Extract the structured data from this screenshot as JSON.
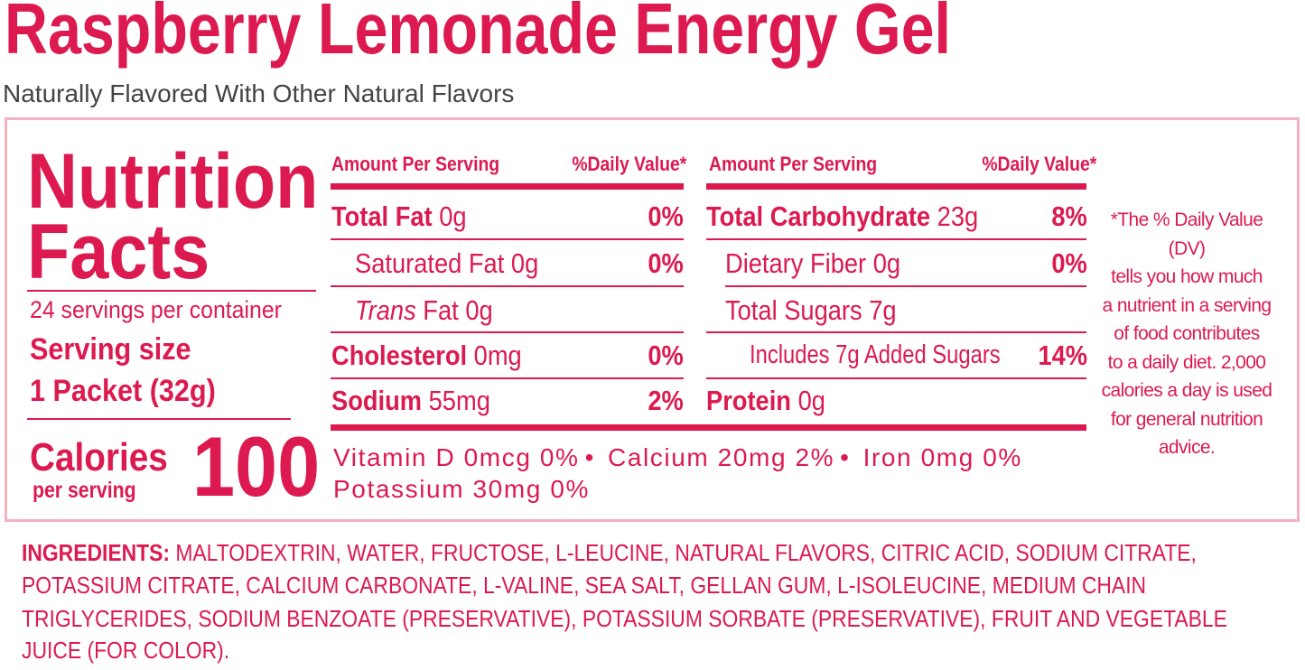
{
  "header": {
    "title": "Raspberry Lemonade Energy Gel",
    "subtitle": "Naturally Flavored With Other Natural Flavors"
  },
  "facts": {
    "heading_lines": [
      "Nutrition",
      "Facts"
    ],
    "servings": "24 servings per container",
    "serving_size_label": "Serving size",
    "serving_size": "1 Packet (32g)",
    "calories_label": "Calories",
    "calories_sub": "per serving",
    "calories": 100
  },
  "left_table": {
    "header_amount": "Amount Per Serving",
    "header_dv": "%Daily Value*",
    "rows": [
      {
        "name": "Total Fat",
        "amount": "0g",
        "dv": "0%"
      },
      {
        "name": "Saturated Fat",
        "amount": "0g",
        "dv": "0%"
      },
      {
        "name_italic": "Trans",
        "name": "Fat",
        "amount": "0g"
      },
      {
        "name": "Cholesterol",
        "amount": "0mg",
        "dv": "0%"
      },
      {
        "name": "Sodium",
        "amount": "55mg",
        "dv": "2%"
      }
    ]
  },
  "right_table": {
    "header_amount": "Amount Per Serving",
    "header_dv": "%Daily Value*",
    "rows": [
      {
        "name": "Total Carbohydrate",
        "amount": "23g",
        "dv": "8%"
      },
      {
        "name": "Dietary Fiber",
        "amount": "0g",
        "dv": "0%"
      },
      {
        "name": "Total Sugars",
        "amount": "7g"
      },
      {
        "name": "Includes 7g Added Sugars",
        "dv": "14%"
      },
      {
        "name": "Protein",
        "amount": "0g"
      }
    ]
  },
  "vitamins": [
    "Vitamin D 0mcg 0%",
    "Calcium 20mg 2%",
    "Iron 0mg 0%",
    "Potassium 30mg 0%"
  ],
  "footnote_lines": [
    "*The % Daily Value (DV)",
    "tells you how much",
    "a nutrient in a serving",
    "of food contributes",
    "to a daily diet. 2,000",
    "calories a day is used",
    "for general nutrition",
    "advice."
  ],
  "ingredients": {
    "label": "INGREDIENTS:",
    "lines": [
      "MALTODEXTRIN, WATER, FRUCTOSE, L-LEUCINE, NATURAL FLAVORS, CITRIC ACID, SODIUM CITRATE,",
      "POTASSIUM CITRATE, CALCIUM CARBONATE, L-VALINE, SEA SALT, GELLAN GUM, L-ISOLEUCINE, MEDIUM CHAIN",
      "TRIGLYCERIDES, SODIUM BENZOATE (PRESERVATIVE), POTASSIUM SORBATE (PRESERVATIVE), FRUIT AND VEGETABLE",
      "JUICE (FOR COLOR)."
    ]
  }
}
